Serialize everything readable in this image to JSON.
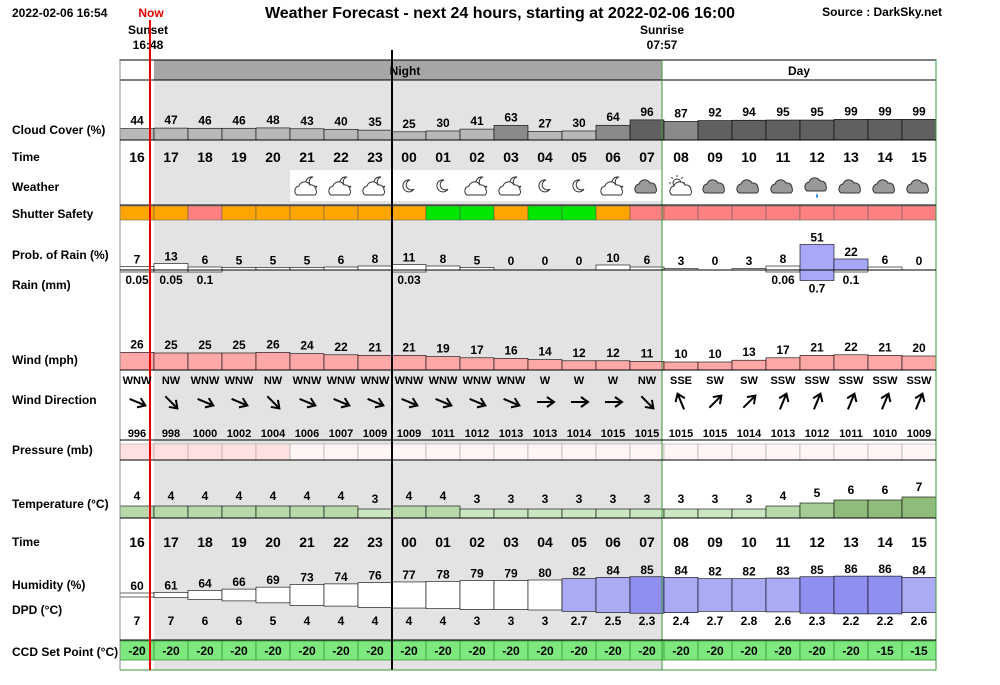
{
  "header": {
    "timestamp": "2022-02-06 16:54",
    "now_label": "Now",
    "title": "Weather Forecast - next 24 hours, starting at 2022-02-06 16:00",
    "source": "Source : DarkSky.net",
    "sunset_label": "Sunset",
    "sunset_time": "16:48",
    "sunrise_label": "Sunrise",
    "sunrise_time": "07:57",
    "night_label": "Night",
    "day_label": "Day"
  },
  "row_labels": {
    "cloud": "Cloud Cover (%)",
    "time": "Time",
    "weather": "Weather",
    "shutter": "Shutter Safety",
    "prob_rain": "Prob. of Rain (%)",
    "rain": "Rain (mm)",
    "wind": "Wind (mph)",
    "wind_dir": "Wind Direction",
    "pressure": "Pressure (mb)",
    "temperature": "Temperature (°C)",
    "time2": "Time",
    "humidity": "Humidity (%)",
    "dpd": "DPD (°C)",
    "ccd": "CCD Set Point (°C)"
  },
  "colors": {
    "night_bg": "#e3e3e3",
    "band_bg": "#a6a6a6",
    "grid_green": "#3a9a3a",
    "now_line": "#e60000",
    "shutter_orange": "#ffa500",
    "shutter_red": "#ff8080",
    "shutter_green": "#00e600",
    "wind_pink": "#ffa8a8",
    "pressure_pink": "#ffe0e0",
    "rain_blue": "#a8a8f8",
    "humid_blue": "#aaaaf5",
    "ccd_green": "#7de87d"
  },
  "hours": [
    "16",
    "17",
    "18",
    "19",
    "20",
    "21",
    "22",
    "23",
    "00",
    "01",
    "02",
    "03",
    "04",
    "05",
    "06",
    "07",
    "08",
    "09",
    "10",
    "11",
    "12",
    "13",
    "14",
    "15"
  ],
  "cloud_cover": [
    "44",
    "47",
    "46",
    "46",
    "48",
    "43",
    "40",
    "35",
    "25",
    "30",
    "41",
    "63",
    "27",
    "30",
    "64",
    "96",
    "87",
    "92",
    "94",
    "95",
    "95",
    "99",
    "99",
    "99"
  ],
  "weather_icons": [
    "none",
    "none",
    "none",
    "none",
    "none",
    "partly-cloudy-night-icon",
    "partly-cloudy-night-icon",
    "partly-cloudy-night-icon",
    "clear-night-icon",
    "clear-night-icon",
    "partly-cloudy-night-icon",
    "partly-cloudy-night-icon",
    "clear-night-icon",
    "clear-night-icon",
    "partly-cloudy-night-icon",
    "cloudy-icon",
    "partly-cloudy-day-icon",
    "cloudy-icon",
    "cloudy-icon",
    "cloudy-icon",
    "rain-icon",
    "cloudy-icon",
    "cloudy-icon",
    "cloudy-icon"
  ],
  "shutter_safety": [
    "orange",
    "orange",
    "red",
    "orange",
    "orange",
    "orange",
    "orange",
    "orange",
    "orange",
    "green",
    "green",
    "orange",
    "green",
    "green",
    "orange",
    "red",
    "red",
    "red",
    "red",
    "red",
    "red",
    "red",
    "red",
    "red"
  ],
  "prob_rain": [
    "7",
    "13",
    "6",
    "5",
    "5",
    "5",
    "6",
    "8",
    "11",
    "8",
    "5",
    "0",
    "0",
    "0",
    "10",
    "6",
    "3",
    "0",
    "3",
    "8",
    "51",
    "22",
    "6",
    "0"
  ],
  "rain": [
    "0.05",
    "0.05",
    "0.1",
    "",
    "",
    "",
    "",
    "",
    "0.03",
    "",
    "",
    "",
    "",
    "",
    "",
    "",
    "",
    "",
    "",
    "0.06",
    "0.7",
    "0.1",
    "",
    ""
  ],
  "wind_speed": [
    "26",
    "25",
    "25",
    "25",
    "26",
    "24",
    "22",
    "21",
    "21",
    "19",
    "17",
    "16",
    "14",
    "12",
    "12",
    "11",
    "10",
    "10",
    "13",
    "17",
    "21",
    "22",
    "21",
    "20"
  ],
  "wind_direction": [
    "WNW",
    "NW",
    "WNW",
    "WNW",
    "NW",
    "WNW",
    "WNW",
    "WNW",
    "WNW",
    "WNW",
    "WNW",
    "WNW",
    "W",
    "W",
    "W",
    "NW",
    "SSE",
    "SW",
    "SW",
    "SSW",
    "SSW",
    "SSW",
    "SSW",
    "SSW"
  ],
  "pressure": [
    "996",
    "998",
    "1000",
    "1002",
    "1004",
    "1006",
    "1007",
    "1009",
    "1009",
    "1011",
    "1012",
    "1013",
    "1013",
    "1014",
    "1015",
    "1015",
    "1015",
    "1015",
    "1014",
    "1013",
    "1012",
    "1011",
    "1010",
    "1009"
  ],
  "temperature": [
    "4",
    "4",
    "4",
    "4",
    "4",
    "4",
    "4",
    "3",
    "4",
    "4",
    "3",
    "3",
    "3",
    "3",
    "3",
    "3",
    "3",
    "3",
    "3",
    "4",
    "5",
    "6",
    "6",
    "7"
  ],
  "humidity": [
    "60",
    "61",
    "64",
    "66",
    "69",
    "73",
    "74",
    "76",
    "77",
    "78",
    "79",
    "79",
    "80",
    "82",
    "84",
    "85",
    "84",
    "82",
    "82",
    "83",
    "85",
    "86",
    "86",
    "84"
  ],
  "dpd": [
    "7",
    "7",
    "6",
    "6",
    "5",
    "4",
    "4",
    "4",
    "4",
    "4",
    "3",
    "3",
    "3",
    "2.7",
    "2.5",
    "2.3",
    "2.4",
    "2.7",
    "2.8",
    "2.6",
    "2.3",
    "2.2",
    "2.2",
    "2.6"
  ],
  "ccd_set_point": [
    "-20",
    "-20",
    "-20",
    "-20",
    "-20",
    "-20",
    "-20",
    "-20",
    "-20",
    "-20",
    "-20",
    "-20",
    "-20",
    "-20",
    "-20",
    "-20",
    "-20",
    "-20",
    "-20",
    "-20",
    "-20",
    "-20",
    "-15",
    "-15"
  ]
}
